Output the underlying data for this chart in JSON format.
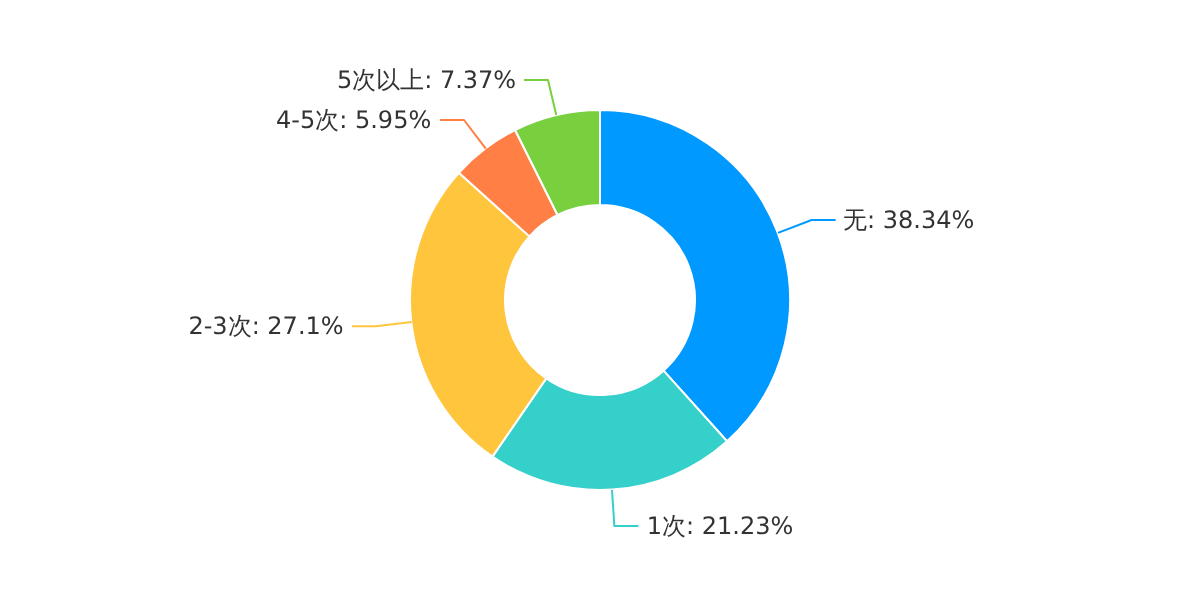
{
  "chart_data": {
    "type": "donut",
    "categories": [
      "无",
      "1次",
      "2-3次",
      "4-5次",
      "5次以上"
    ],
    "values": [
      38.34,
      21.23,
      27.1,
      5.95,
      7.37
    ],
    "colors": [
      "#0099ff",
      "#35d0c9",
      "#ffc53d",
      "#ff7f45",
      "#78d03f"
    ],
    "value_labels": [
      ": 38.34%",
      ": 21.23%",
      ": 27.1%",
      ": 5.95%",
      ": 7.37%"
    ],
    "legend": false
  }
}
